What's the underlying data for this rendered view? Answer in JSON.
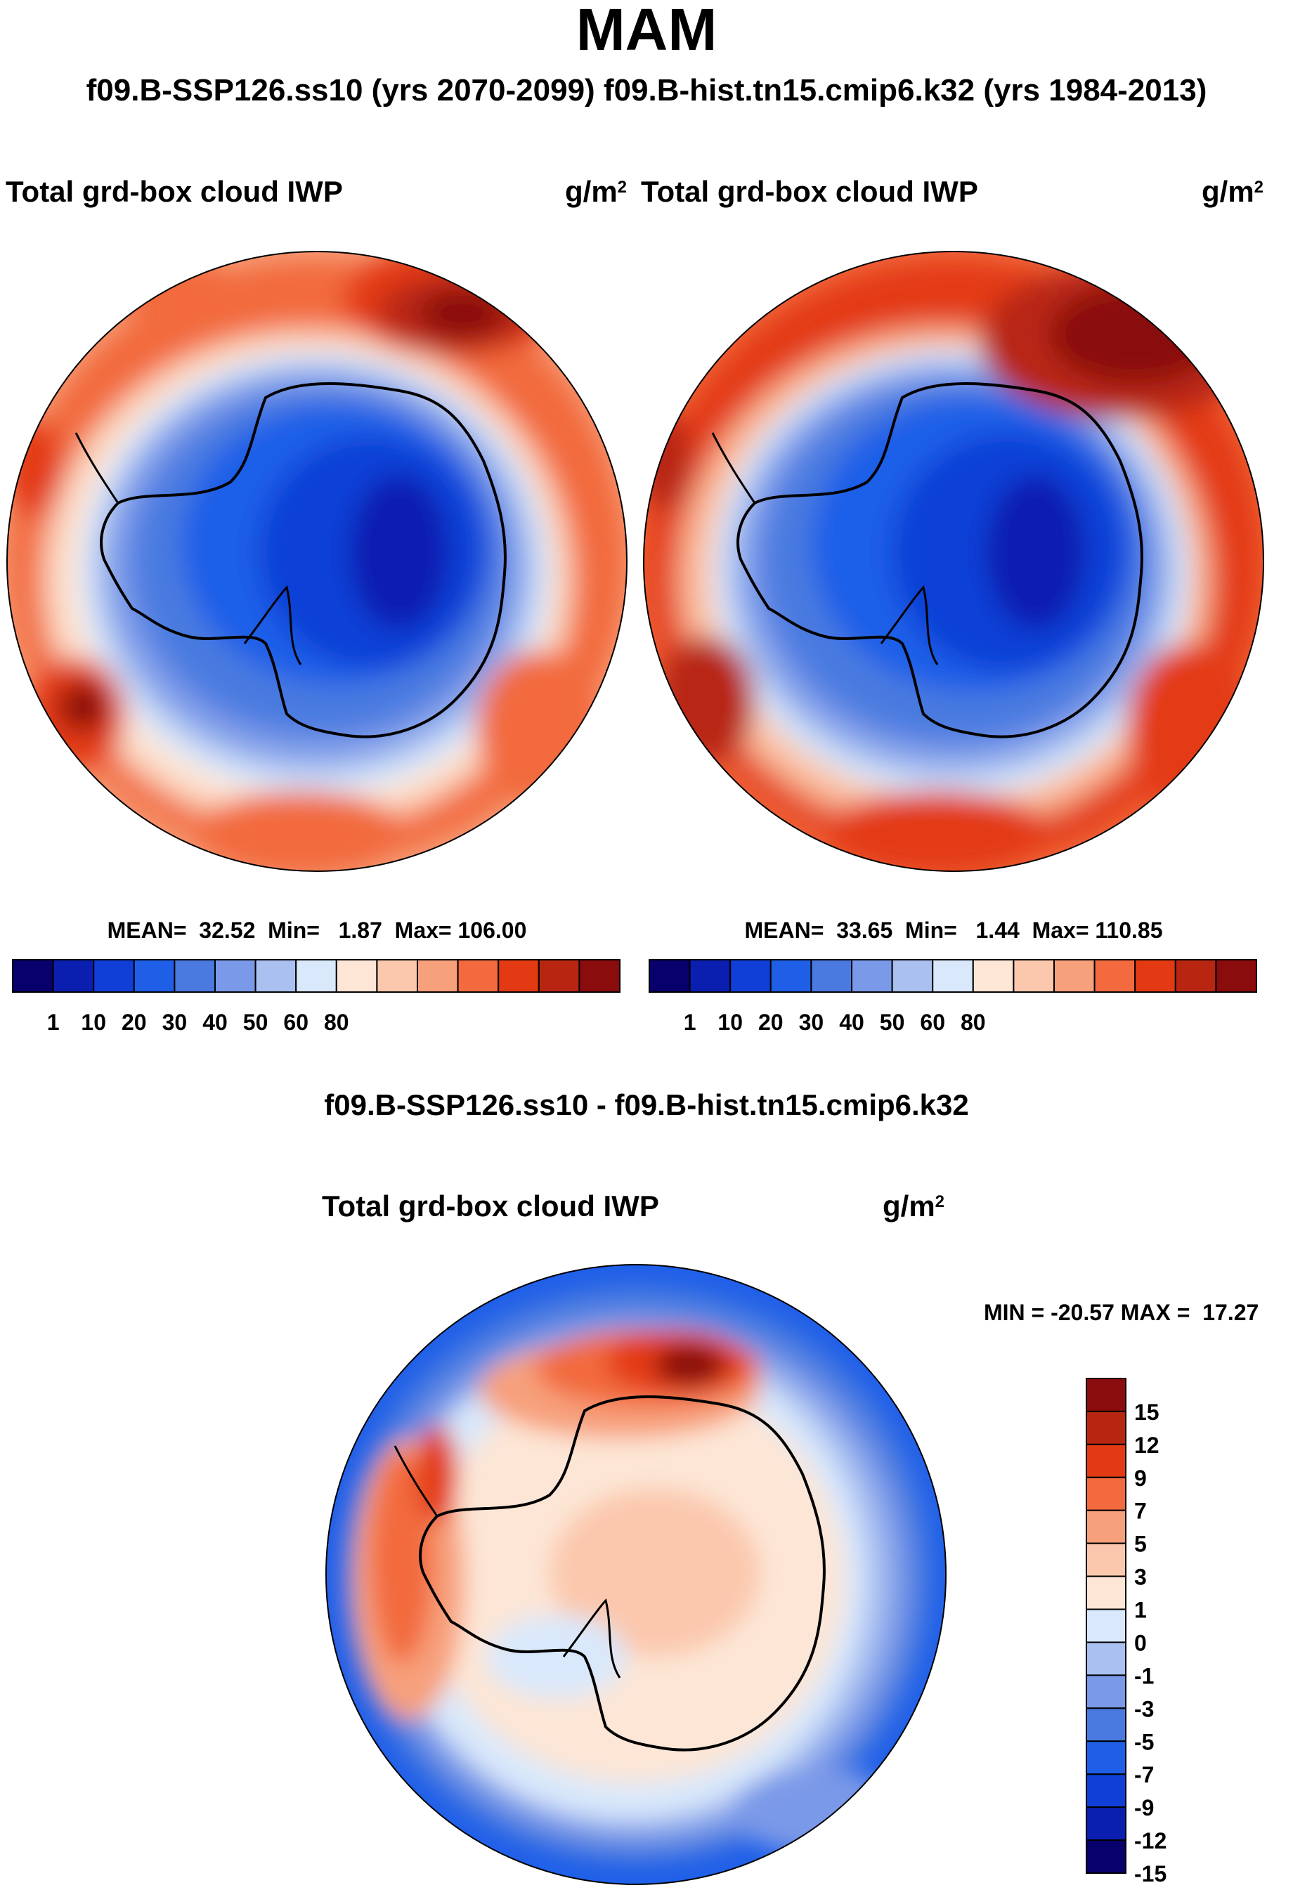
{
  "title": "MAM",
  "subtitle": "f09.B-SSP126.ss10 (yrs 2070-2099)  f09.B-hist.tn15.cmip6.k32 (yrs 1984-2013)",
  "panels": [
    {
      "variable": "Total grd-box cloud IWP",
      "units": "g/m",
      "units_sup": "2",
      "stats": "MEAN=  32.52  Min=   1.87  Max= 106.00"
    },
    {
      "variable": "Total grd-box cloud IWP",
      "units": "g/m",
      "units_sup": "2",
      "stats": "MEAN=  33.65  Min=   1.44  Max= 110.85"
    }
  ],
  "diff": {
    "title": "f09.B-SSP126.ss10 - f09.B-hist.tn15.cmip6.k32",
    "variable": "Total grd-box cloud IWP",
    "units": "g/m",
    "units_sup": "2",
    "stats": "MIN = -20.57 MAX =  17.27"
  },
  "abs_colorbar": {
    "colors": [
      "#08006b",
      "#0a1fb0",
      "#0f3fd6",
      "#1f5fe8",
      "#4a7ae0",
      "#7a99e8",
      "#a9c0f0",
      "#d9e8fb",
      "#fde6d6",
      "#fbc8ad",
      "#f7a07c",
      "#f26a3e",
      "#e33a14",
      "#b82612",
      "#8a0c0c"
    ],
    "labels": [
      "1",
      "10",
      "20",
      "30",
      "40",
      "50",
      "60",
      "80"
    ]
  },
  "diff_colorbar": {
    "colors": [
      "#8a0c0c",
      "#b82612",
      "#e33a14",
      "#f26a3e",
      "#f7a07c",
      "#fbc8ad",
      "#fde6d6",
      "#d9e8fb",
      "#a9c0f0",
      "#7a99e8",
      "#4a7ae0",
      "#1f5fe8",
      "#0f3fd6",
      "#0a1fb0",
      "#08006b"
    ],
    "labels": [
      "15",
      "12",
      "9",
      "7",
      "5",
      "3",
      "1",
      "0",
      "-1",
      "-3",
      "-5",
      "-7",
      "-9",
      "-12",
      "-15"
    ]
  }
}
